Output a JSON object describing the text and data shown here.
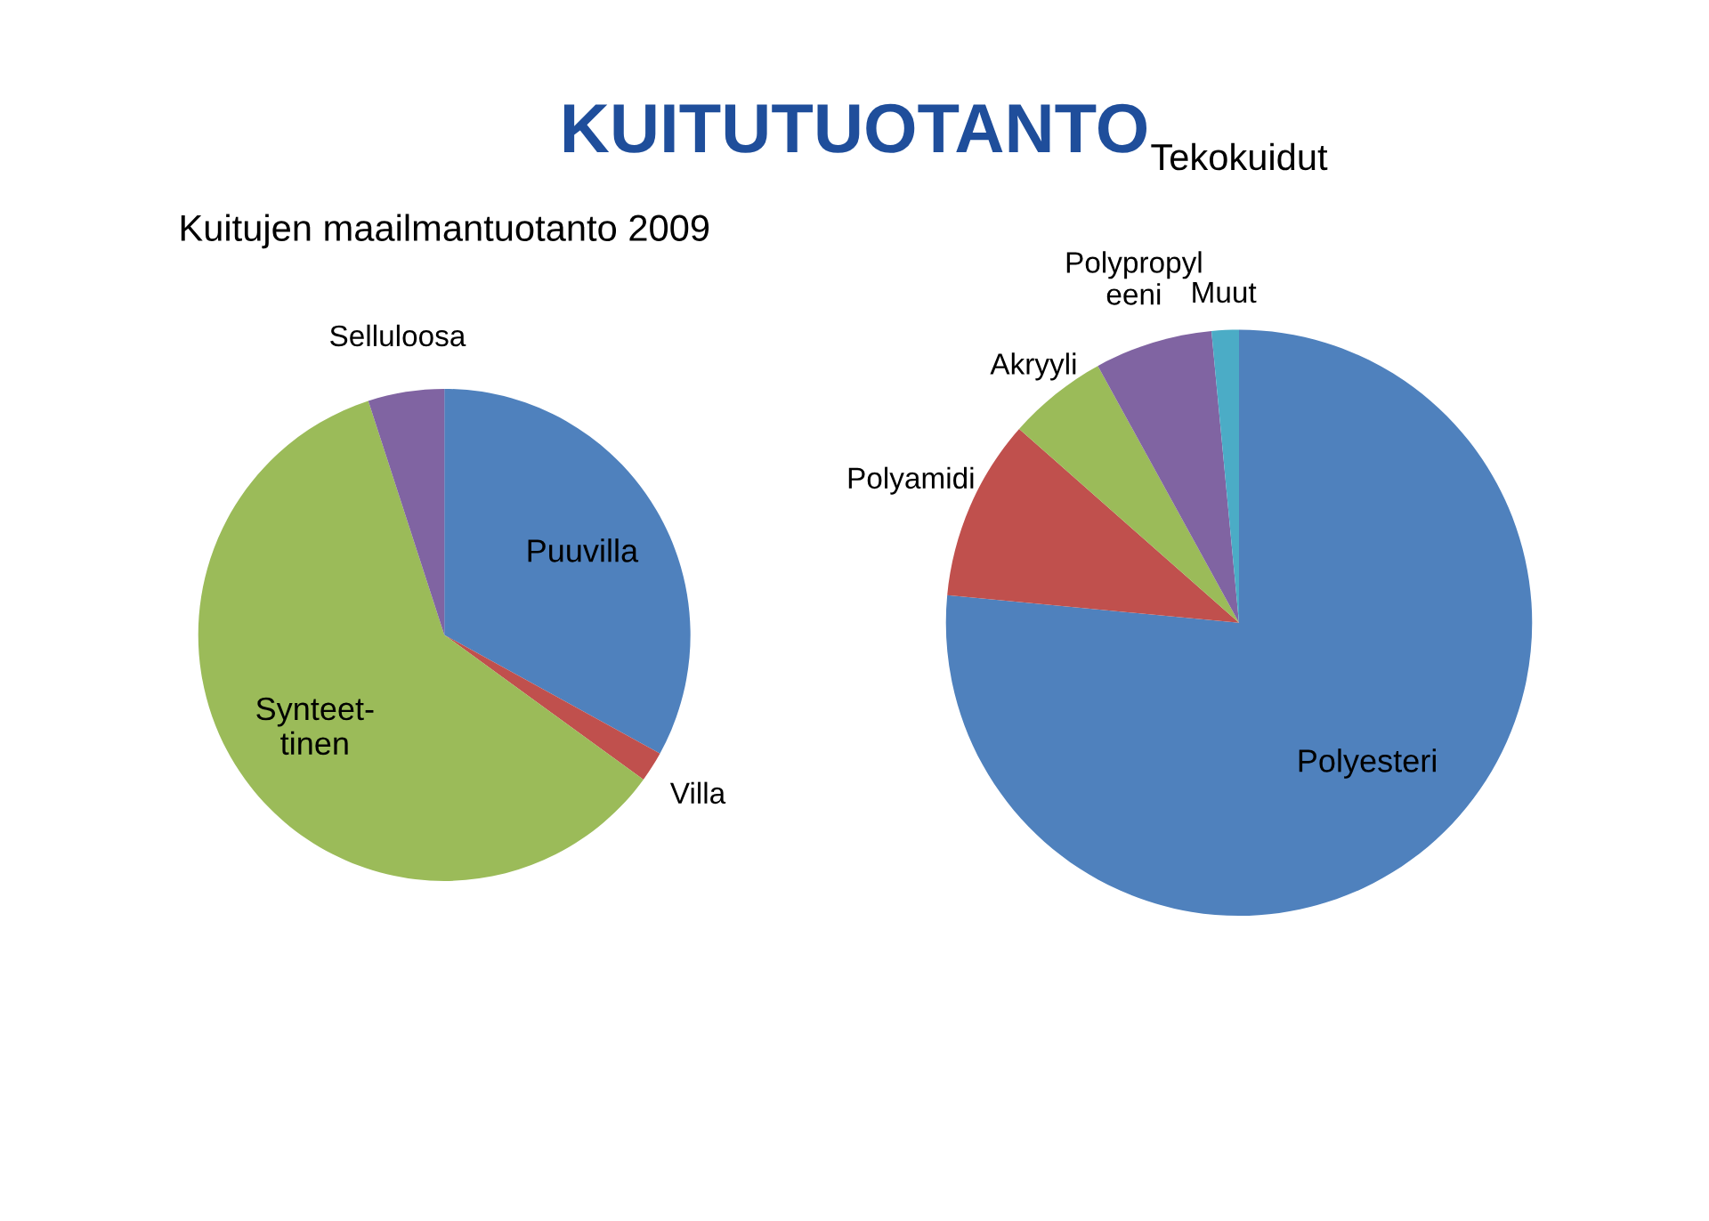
{
  "chart_data": [
    {
      "type": "pie",
      "title": "Kuitujen maailmantuotanto 2009",
      "annotations": [
        "KUITUTUOTANTO"
      ],
      "categories": [
        "Puuvilla",
        "Villa",
        "Synteet-\ntinen",
        "Selluloosa"
      ],
      "values": [
        33,
        2,
        60,
        5
      ],
      "colors": [
        "#4f81bd",
        "#c0504d",
        "#9bbb59",
        "#8064a2"
      ]
    },
    {
      "type": "pie",
      "title": "Tekokuidut",
      "categories": [
        "Polyesteri",
        "Polyamidi",
        "Akryyli",
        "Polypropyl\neeni",
        "Muut"
      ],
      "values": [
        76.5,
        10,
        5.5,
        6.5,
        1.5
      ],
      "colors": [
        "#4f81bd",
        "#c0504d",
        "#9bbb59",
        "#8064a2",
        "#4bacc6"
      ]
    }
  ]
}
